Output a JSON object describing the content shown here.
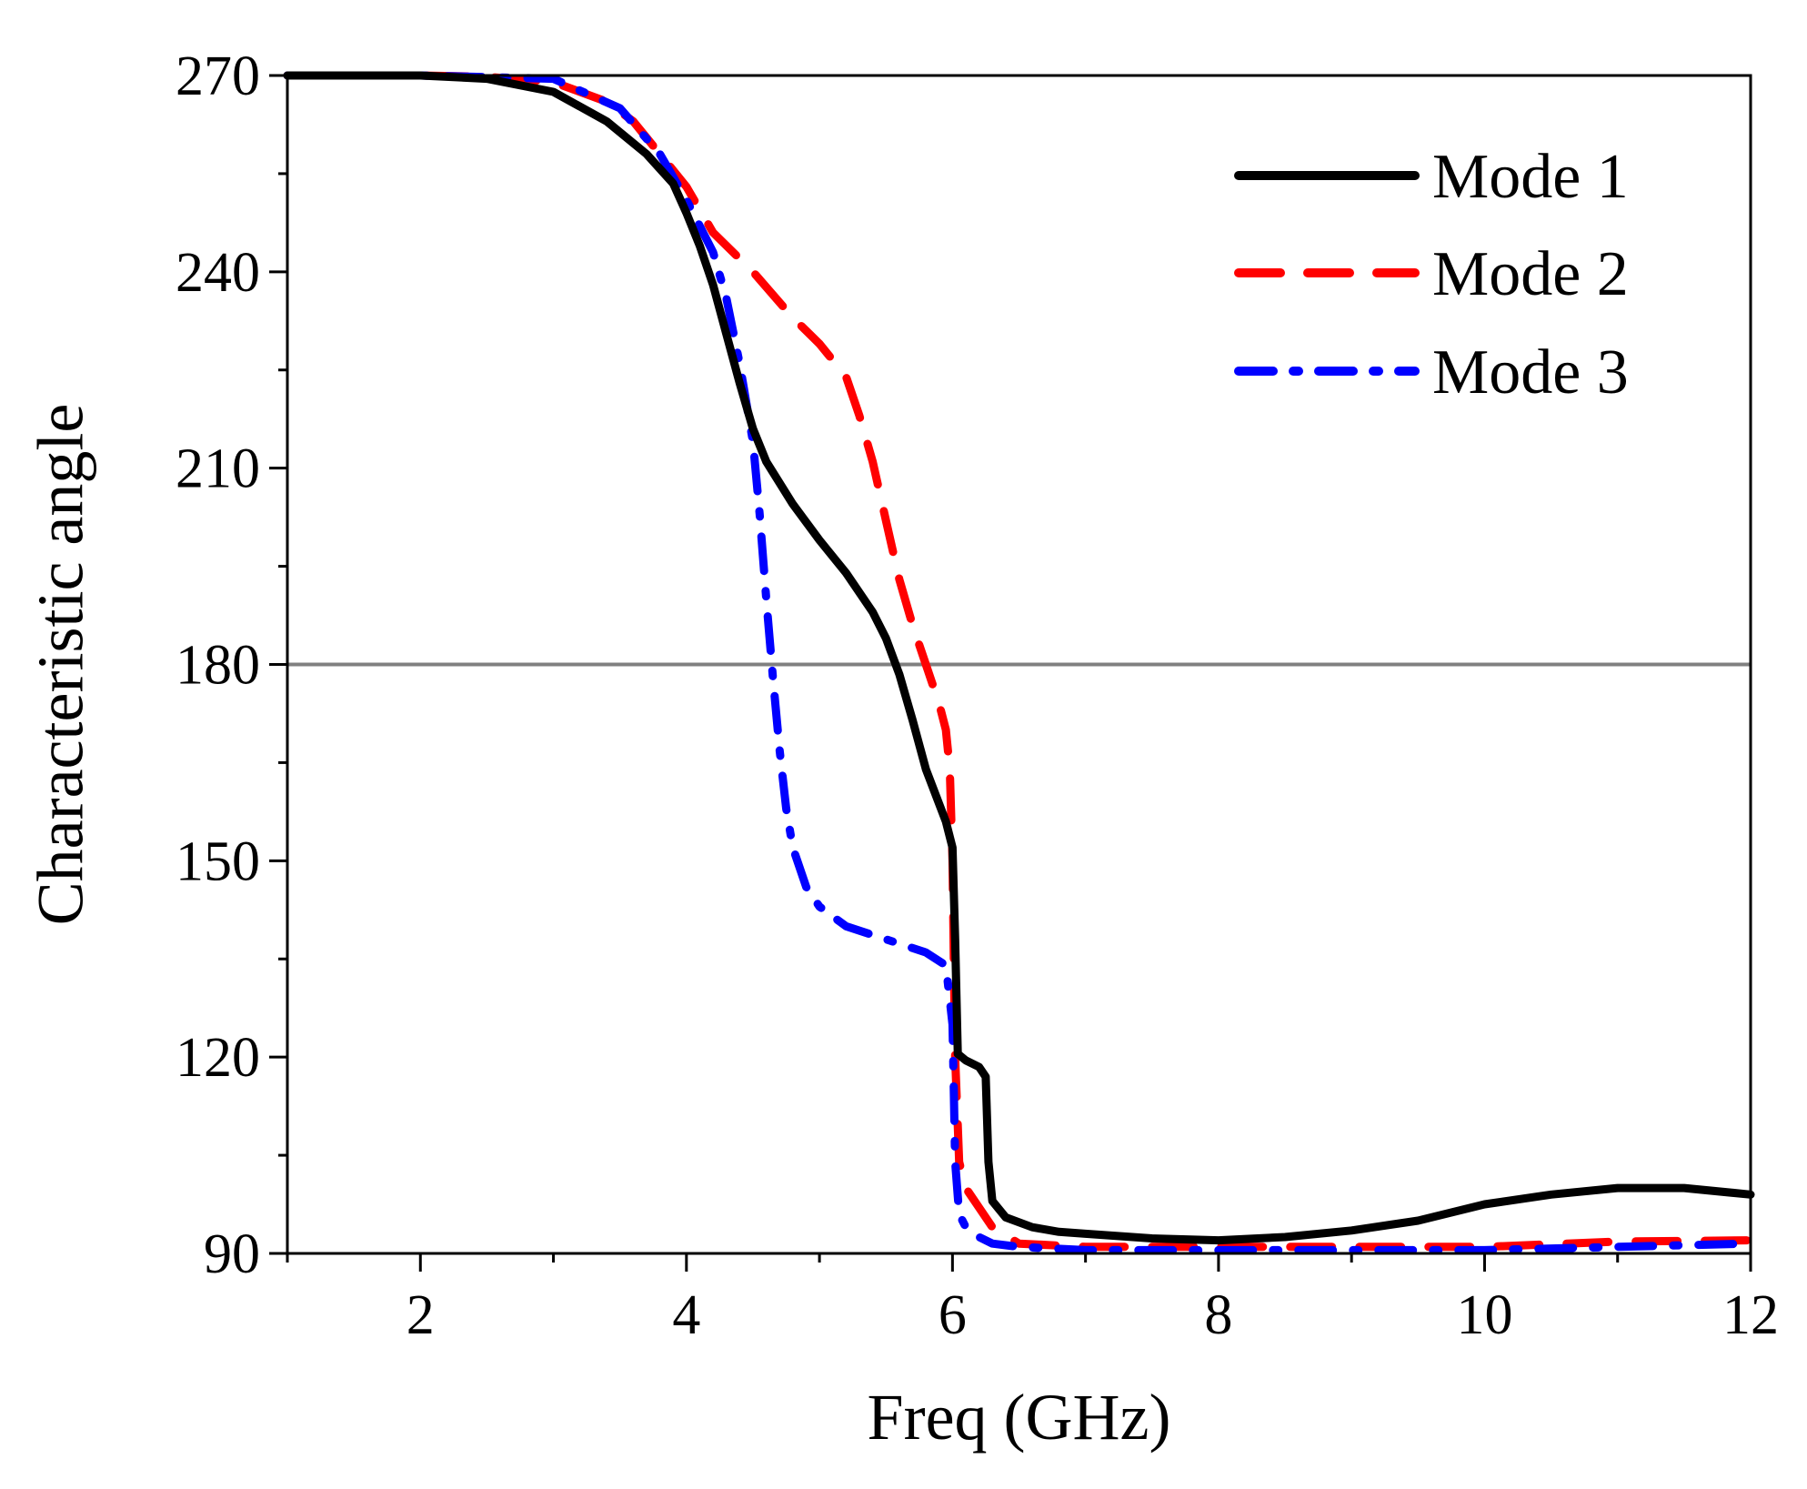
{
  "chart_data": {
    "type": "line",
    "xlabel": "Freq (GHz)",
    "ylabel": "Characteristic angle",
    "xlim": [
      1,
      12
    ],
    "ylim": [
      90,
      270
    ],
    "xticks": [
      2,
      4,
      6,
      8,
      10,
      12
    ],
    "xtick_labels": [
      "2",
      "4",
      "6",
      "8",
      "10",
      "12"
    ],
    "yticks": [
      90,
      120,
      150,
      180,
      210,
      240,
      270
    ],
    "ytick_labels": [
      "90",
      "120",
      "150",
      "180",
      "210",
      "240",
      "270"
    ],
    "grid": false,
    "legend_position": "top-right",
    "reference_line": {
      "y": 180,
      "color": "#808080"
    },
    "series": [
      {
        "name": "Mode 1",
        "color": "#000000",
        "style": "solid",
        "x": [
          1.0,
          2.0,
          2.5,
          3.0,
          3.4,
          3.7,
          3.9,
          4.0,
          4.1,
          4.2,
          4.3,
          4.4,
          4.5,
          4.6,
          4.8,
          5.0,
          5.2,
          5.4,
          5.5,
          5.6,
          5.7,
          5.8,
          5.95,
          6.0,
          6.02,
          6.04,
          6.1,
          6.2,
          6.25,
          6.27,
          6.3,
          6.4,
          6.6,
          6.8,
          7.0,
          7.5,
          8.0,
          8.5,
          9.0,
          9.5,
          10.0,
          10.5,
          11.0,
          11.5,
          12.0
        ],
        "y": [
          270,
          270,
          269.5,
          267.5,
          263,
          258,
          253.5,
          249,
          244,
          238,
          230.5,
          223,
          216,
          211,
          204.5,
          199,
          194,
          188,
          184,
          178.5,
          171.5,
          164,
          156,
          152,
          138,
          120.5,
          119.5,
          118.5,
          117,
          104,
          98,
          95.5,
          94,
          93.3,
          93,
          92.3,
          92,
          92.5,
          93.5,
          95,
          97.5,
          99,
          100,
          100,
          99
        ]
      },
      {
        "name": "Mode 2",
        "color": "#ff0000",
        "style": "dashed",
        "x": [
          1.0,
          2.0,
          2.5,
          3.0,
          3.4,
          3.6,
          3.8,
          4.0,
          4.2,
          4.5,
          4.8,
          5.0,
          5.2,
          5.3,
          5.4,
          5.5,
          5.6,
          5.7,
          5.8,
          5.9,
          5.95,
          5.98,
          6.0,
          6.01,
          6.02,
          6.05,
          6.1,
          6.2,
          6.3,
          6.5,
          7.0,
          8.0,
          9.0,
          10.0,
          11.0,
          12.0
        ],
        "y": [
          270,
          270,
          269.8,
          269,
          266,
          263,
          258,
          253,
          246,
          240,
          233,
          229,
          224,
          218,
          211,
          202,
          193,
          186,
          180,
          174,
          170,
          164,
          150,
          135,
          120,
          104,
          100,
          97,
          94,
          91.5,
          91,
          91,
          91,
          91,
          91.8,
          92
        ]
      },
      {
        "name": "Mode 3",
        "color": "#0000ff",
        "style": "dashdot",
        "x": [
          1.0,
          2.0,
          3.0,
          3.5,
          3.8,
          4.0,
          4.2,
          4.3,
          4.4,
          4.5,
          4.55,
          4.6,
          4.65,
          4.7,
          4.75,
          4.8,
          4.9,
          5.0,
          5.2,
          5.5,
          5.8,
          5.95,
          6.0,
          6.01,
          6.02,
          6.05,
          6.1,
          6.2,
          6.3,
          6.5,
          7.0,
          8.0,
          9.0,
          10.0,
          11.0,
          12.0
        ],
        "y": [
          270,
          270,
          269.5,
          265,
          258,
          251,
          243,
          236,
          226,
          214,
          203,
          190,
          178,
          167,
          158,
          152,
          146,
          143,
          140,
          138,
          136,
          134,
          125,
          115,
          104,
          96,
          94,
          92.5,
          91.5,
          91,
          90.5,
          90.5,
          90.5,
          90.5,
          91,
          91.5
        ]
      }
    ]
  }
}
